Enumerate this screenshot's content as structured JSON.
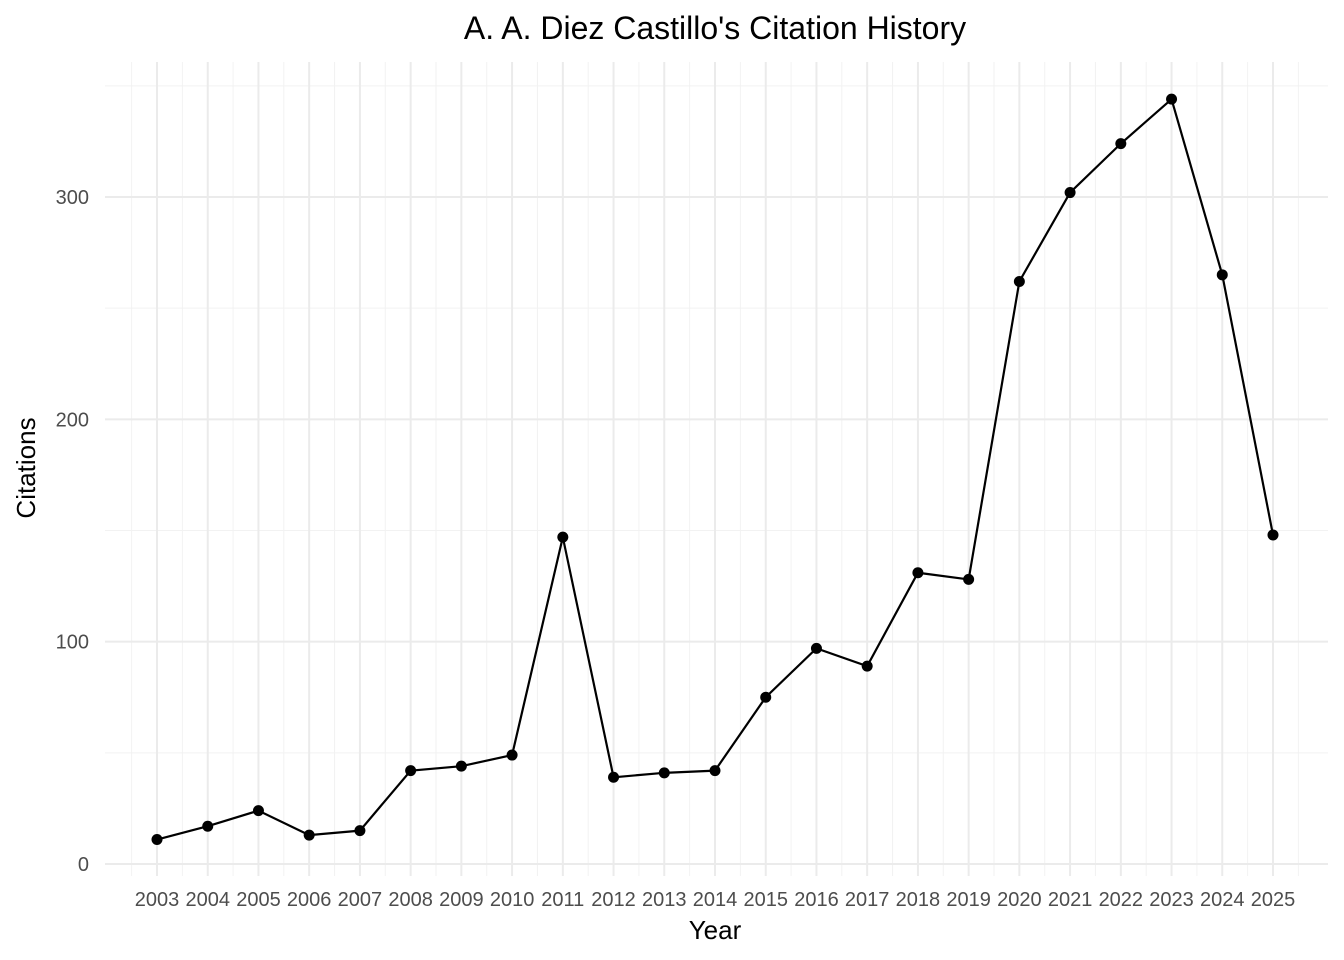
{
  "chart_data": {
    "type": "line",
    "title": "A. A. Diez Castillo's Citation History",
    "xlabel": "Year",
    "ylabel": "Citations",
    "x": [
      2003,
      2004,
      2005,
      2006,
      2007,
      2008,
      2009,
      2010,
      2011,
      2012,
      2013,
      2014,
      2015,
      2016,
      2017,
      2018,
      2019,
      2020,
      2021,
      2022,
      2023,
      2024,
      2025
    ],
    "y": [
      11,
      17,
      24,
      13,
      15,
      42,
      44,
      49,
      147,
      39,
      41,
      42,
      75,
      97,
      89,
      131,
      128,
      262,
      302,
      324,
      344,
      265,
      148
    ],
    "xlim": [
      2002,
      2026
    ],
    "ylim": [
      0,
      350
    ],
    "yticks": [
      0,
      100,
      200,
      300
    ],
    "grid": true,
    "legend": "none",
    "colors": {
      "line": "#000000",
      "point": "#000000",
      "grid": "#ebebeb"
    }
  }
}
